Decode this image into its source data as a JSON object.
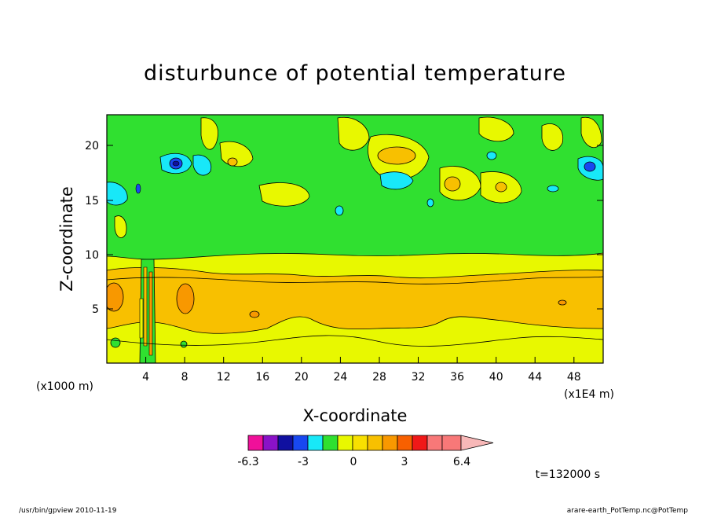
{
  "chart_data": {
    "type": "heatmap",
    "title": "disturbunce of potential temperature",
    "xlabel": "X-coordinate",
    "ylabel": "Z-coordinate",
    "x_unit": "(x1E4 m)",
    "z_unit": "(x1000 m)",
    "xlim": [
      0,
      51
    ],
    "ylim": [
      0,
      22.8
    ],
    "x_ticks": [
      4,
      8,
      12,
      16,
      20,
      24,
      28,
      32,
      36,
      40,
      44,
      48
    ],
    "y_ticks": [
      5,
      10,
      15,
      20
    ],
    "colorbar": {
      "colors": [
        "#f0109a",
        "#8a12c8",
        "#1010a0",
        "#1848f0",
        "#18e8f8",
        "#30e030",
        "#e8f800",
        "#f8e000",
        "#f8c000",
        "#f89800",
        "#f86000",
        "#f01818",
        "#f87878",
        "#f8b8b8"
      ],
      "tick_labels": [
        "-6.3",
        "-3",
        "0",
        "3",
        "6.4"
      ]
    },
    "time_label": "t=132000 s",
    "footer_left": "/usr/bin/gpview   2010-11-19",
    "footer_right": "arare-earth_PotTemp.nc@PotTemp"
  }
}
